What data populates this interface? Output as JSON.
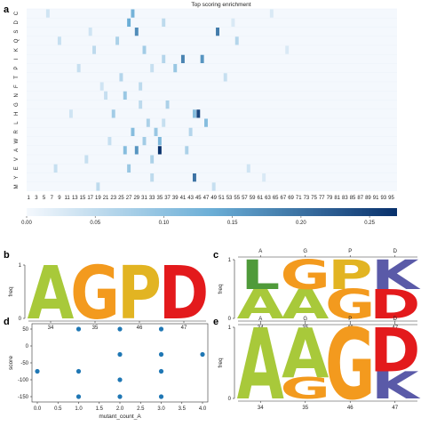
{
  "panels": {
    "a": "a",
    "b": "b",
    "c": "c",
    "d": "d",
    "e": "e"
  },
  "colors": {
    "A": "#a8c93a",
    "G": "#f39a1e",
    "P": "#e2b422",
    "D": "#e31a1c",
    "K": "#5a5aa8",
    "L": "#4f9a3a",
    "heat_low": "#f4f8fd",
    "heat_high": "#08306b",
    "point": "#1f77b4"
  },
  "chart_data": [
    {
      "id": "a",
      "type": "heatmap",
      "title": "Top scoring enrichment",
      "rows": [
        "M",
        "Y",
        "E",
        "V",
        "A",
        "W",
        "R",
        "L",
        "H",
        "G",
        "N",
        "F",
        "T",
        "P",
        "I",
        "K",
        "Q",
        "S",
        "D",
        "C"
      ],
      "columns_range": [
        1,
        96
      ],
      "x_tick_labels": [
        "1",
        "3",
        "5",
        "7",
        "9",
        "11",
        "13",
        "15",
        "17",
        "19",
        "21",
        "23",
        "25",
        "27",
        "29",
        "31",
        "33",
        "35",
        "37",
        "39",
        "41",
        "43",
        "45",
        "47",
        "49",
        "51",
        "53",
        "55",
        "57",
        "59",
        "61",
        "63",
        "65",
        "67",
        "69",
        "71",
        "73",
        "75",
        "77",
        "79",
        "81",
        "83",
        "85",
        "87",
        "89",
        "91",
        "93",
        "95"
      ],
      "colorbar": {
        "range": [
          0,
          0.27
        ],
        "ticks": [
          "0.00",
          "0.05",
          "0.10",
          "0.15",
          "0.20",
          "0.25"
        ]
      },
      "cells": [
        {
          "row": "C",
          "col": 6,
          "v": 0.04
        },
        {
          "row": "C",
          "col": 28,
          "v": 0.14
        },
        {
          "row": "C",
          "col": 64,
          "v": 0.03
        },
        {
          "row": "D",
          "col": 27,
          "v": 0.15
        },
        {
          "row": "D",
          "col": 36,
          "v": 0.06
        },
        {
          "row": "D",
          "col": 54,
          "v": 0.03
        },
        {
          "row": "S",
          "col": 29,
          "v": 0.19
        },
        {
          "row": "S",
          "col": 50,
          "v": 0.21
        },
        {
          "row": "S",
          "col": 17,
          "v": 0.04
        },
        {
          "row": "Q",
          "col": 9,
          "v": 0.05
        },
        {
          "row": "Q",
          "col": 24,
          "v": 0.08
        },
        {
          "row": "Q",
          "col": 55,
          "v": 0.07
        },
        {
          "row": "K",
          "col": 18,
          "v": 0.06
        },
        {
          "row": "K",
          "col": 31,
          "v": 0.09
        },
        {
          "row": "K",
          "col": 68,
          "v": 0.03
        },
        {
          "row": "I",
          "col": 36,
          "v": 0.07
        },
        {
          "row": "I",
          "col": 41,
          "v": 0.2
        },
        {
          "row": "I",
          "col": 46,
          "v": 0.18
        },
        {
          "row": "P",
          "col": 14,
          "v": 0.05
        },
        {
          "row": "P",
          "col": 39,
          "v": 0.1
        },
        {
          "row": "P",
          "col": 33,
          "v": 0.05
        },
        {
          "row": "T",
          "col": 25,
          "v": 0.07
        },
        {
          "row": "T",
          "col": 52,
          "v": 0.05
        },
        {
          "row": "F",
          "col": 20,
          "v": 0.04
        },
        {
          "row": "F",
          "col": 30,
          "v": 0.06
        },
        {
          "row": "N",
          "col": 26,
          "v": 0.1
        },
        {
          "row": "N",
          "col": 21,
          "v": 0.05
        },
        {
          "row": "H",
          "col": 12,
          "v": 0.04
        },
        {
          "row": "H",
          "col": 23,
          "v": 0.09
        },
        {
          "row": "H",
          "col": 45,
          "v": 0.27
        },
        {
          "row": "H",
          "col": 44,
          "v": 0.12
        },
        {
          "row": "G",
          "col": 30,
          "v": 0.06
        },
        {
          "row": "G",
          "col": 37,
          "v": 0.08
        },
        {
          "row": "L",
          "col": 32,
          "v": 0.08
        },
        {
          "row": "L",
          "col": 47,
          "v": 0.12
        },
        {
          "row": "L",
          "col": 36,
          "v": 0.05
        },
        {
          "row": "R",
          "col": 28,
          "v": 0.12
        },
        {
          "row": "R",
          "col": 34,
          "v": 0.1
        },
        {
          "row": "R",
          "col": 43,
          "v": 0.07
        },
        {
          "row": "W",
          "col": 31,
          "v": 0.09
        },
        {
          "row": "W",
          "col": 35,
          "v": 0.13
        },
        {
          "row": "W",
          "col": 22,
          "v": 0.05
        },
        {
          "row": "A",
          "col": 29,
          "v": 0.18
        },
        {
          "row": "A",
          "col": 35,
          "v": 0.3
        },
        {
          "row": "A",
          "col": 42,
          "v": 0.08
        },
        {
          "row": "A",
          "col": 26,
          "v": 0.12
        },
        {
          "row": "V",
          "col": 16,
          "v": 0.05
        },
        {
          "row": "V",
          "col": 33,
          "v": 0.08
        },
        {
          "row": "E",
          "col": 8,
          "v": 0.05
        },
        {
          "row": "E",
          "col": 27,
          "v": 0.1
        },
        {
          "row": "E",
          "col": 58,
          "v": 0.04
        },
        {
          "row": "Y",
          "col": 33,
          "v": 0.06
        },
        {
          "row": "Y",
          "col": 44,
          "v": 0.22
        },
        {
          "row": "Y",
          "col": 62,
          "v": 0.03
        },
        {
          "row": "M",
          "col": 19,
          "v": 0.06
        },
        {
          "row": "M",
          "col": 49,
          "v": 0.05
        }
      ]
    },
    {
      "id": "b",
      "type": "bar",
      "subtype": "sequence-logo",
      "ylabel": "freq",
      "ylim": [
        0,
        1
      ],
      "y_ticks": [
        "0",
        "1"
      ],
      "categories": [
        "34",
        "35",
        "46",
        "47"
      ],
      "stacks": [
        [
          {
            "letter": "A",
            "value": 1.0
          }
        ],
        [
          {
            "letter": "G",
            "value": 1.0
          }
        ],
        [
          {
            "letter": "P",
            "value": 1.0
          }
        ],
        [
          {
            "letter": "D",
            "value": 1.0
          }
        ]
      ]
    },
    {
      "id": "c",
      "type": "bar",
      "subtype": "sequence-logo",
      "ylabel": "freq",
      "ylim": [
        0,
        1
      ],
      "y_ticks": [
        "0",
        "1"
      ],
      "categories": [
        "34",
        "35",
        "46",
        "47"
      ],
      "top_labels": [
        "A",
        "G",
        "P",
        "D"
      ],
      "stacks": [
        [
          {
            "letter": "A",
            "value": 0.5
          },
          {
            "letter": "L",
            "value": 0.5
          }
        ],
        [
          {
            "letter": "A",
            "value": 0.5
          },
          {
            "letter": "G",
            "value": 0.5
          }
        ],
        [
          {
            "letter": "G",
            "value": 0.5
          },
          {
            "letter": "P",
            "value": 0.5
          }
        ],
        [
          {
            "letter": "D",
            "value": 0.5
          },
          {
            "letter": "K",
            "value": 0.5
          }
        ]
      ]
    },
    {
      "id": "d",
      "type": "scatter",
      "xlabel": "mutant_count_A",
      "ylabel": "score",
      "xlim": [
        0,
        4
      ],
      "ylim": [
        -150,
        50
      ],
      "x_ticks": [
        "0.0",
        "0.5",
        "1.0",
        "1.5",
        "2.0",
        "2.5",
        "3.0",
        "3.5",
        "4.0"
      ],
      "y_ticks": [
        "-150",
        "-100",
        "-50",
        "0",
        "50"
      ],
      "x": [
        0,
        1,
        1,
        1,
        2,
        2,
        2,
        2,
        3,
        3,
        3,
        3,
        4
      ],
      "y": [
        -75,
        -150,
        -75,
        50,
        -150,
        -100,
        -25,
        50,
        -150,
        -75,
        -25,
        50,
        -25
      ]
    },
    {
      "id": "e",
      "type": "bar",
      "subtype": "sequence-logo",
      "ylabel": "freq",
      "ylim": [
        0,
        1
      ],
      "y_ticks": [
        "0",
        "1"
      ],
      "categories": [
        "34",
        "35",
        "46",
        "47"
      ],
      "top_labels": [
        "A",
        "G",
        "P",
        "D"
      ],
      "stacks": [
        [
          {
            "letter": "A",
            "value": 1.0
          }
        ],
        [
          {
            "letter": "G",
            "value": 0.3
          },
          {
            "letter": "A",
            "value": 0.7
          }
        ],
        [
          {
            "letter": "G",
            "value": 1.0
          }
        ],
        [
          {
            "letter": "K",
            "value": 0.38
          },
          {
            "letter": "D",
            "value": 0.62
          }
        ]
      ]
    }
  ]
}
